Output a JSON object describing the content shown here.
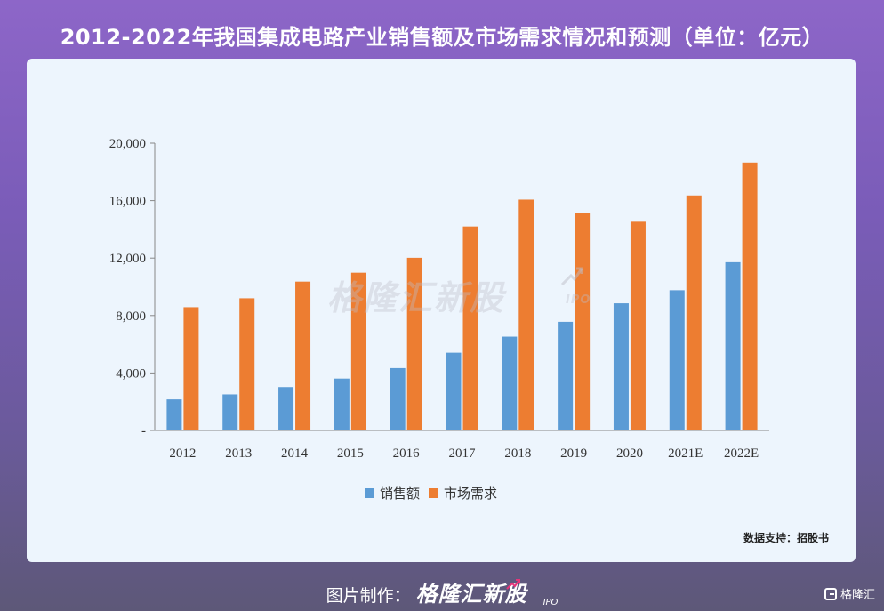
{
  "title": "2012-2022年我国集成电路产业销售额及市场需求情况和预测（单位：亿元）",
  "watermark": {
    "brand": "格隆汇新股",
    "sub": "IPO"
  },
  "source": "数据支持：招股书",
  "footer": {
    "credit_label": "图片制作：",
    "brand": "格隆汇新股",
    "sub": "IPO"
  },
  "corner_logo": "格隆汇",
  "colors": {
    "series_sales": "#5b9bd5",
    "series_demand": "#ed7d31",
    "axis": "#888888",
    "card_bg": "#edf5fd",
    "accent_pink": "#e8347a"
  },
  "chart_data": {
    "type": "bar",
    "categories": [
      "2012",
      "2013",
      "2014",
      "2015",
      "2016",
      "2017",
      "2018",
      "2019",
      "2020",
      "2021E",
      "2022E"
    ],
    "series": [
      {
        "name": "销售额",
        "color": "#5b9bd5",
        "values": [
          2160,
          2510,
          3020,
          3610,
          4340,
          5410,
          6530,
          7560,
          8850,
          9760,
          11710
        ]
      },
      {
        "name": "市场需求",
        "color": "#ed7d31",
        "values": [
          8580,
          9200,
          10360,
          10980,
          12020,
          14200,
          16070,
          15160,
          14530,
          16360,
          18650
        ]
      }
    ],
    "y_ticks": [
      "-",
      "4,000",
      "8,000",
      "12,000",
      "16,000",
      "20,000"
    ],
    "ylim": [
      0,
      20000
    ],
    "grid": false,
    "legend_position": "bottom",
    "xlabel": "",
    "ylabel": ""
  }
}
